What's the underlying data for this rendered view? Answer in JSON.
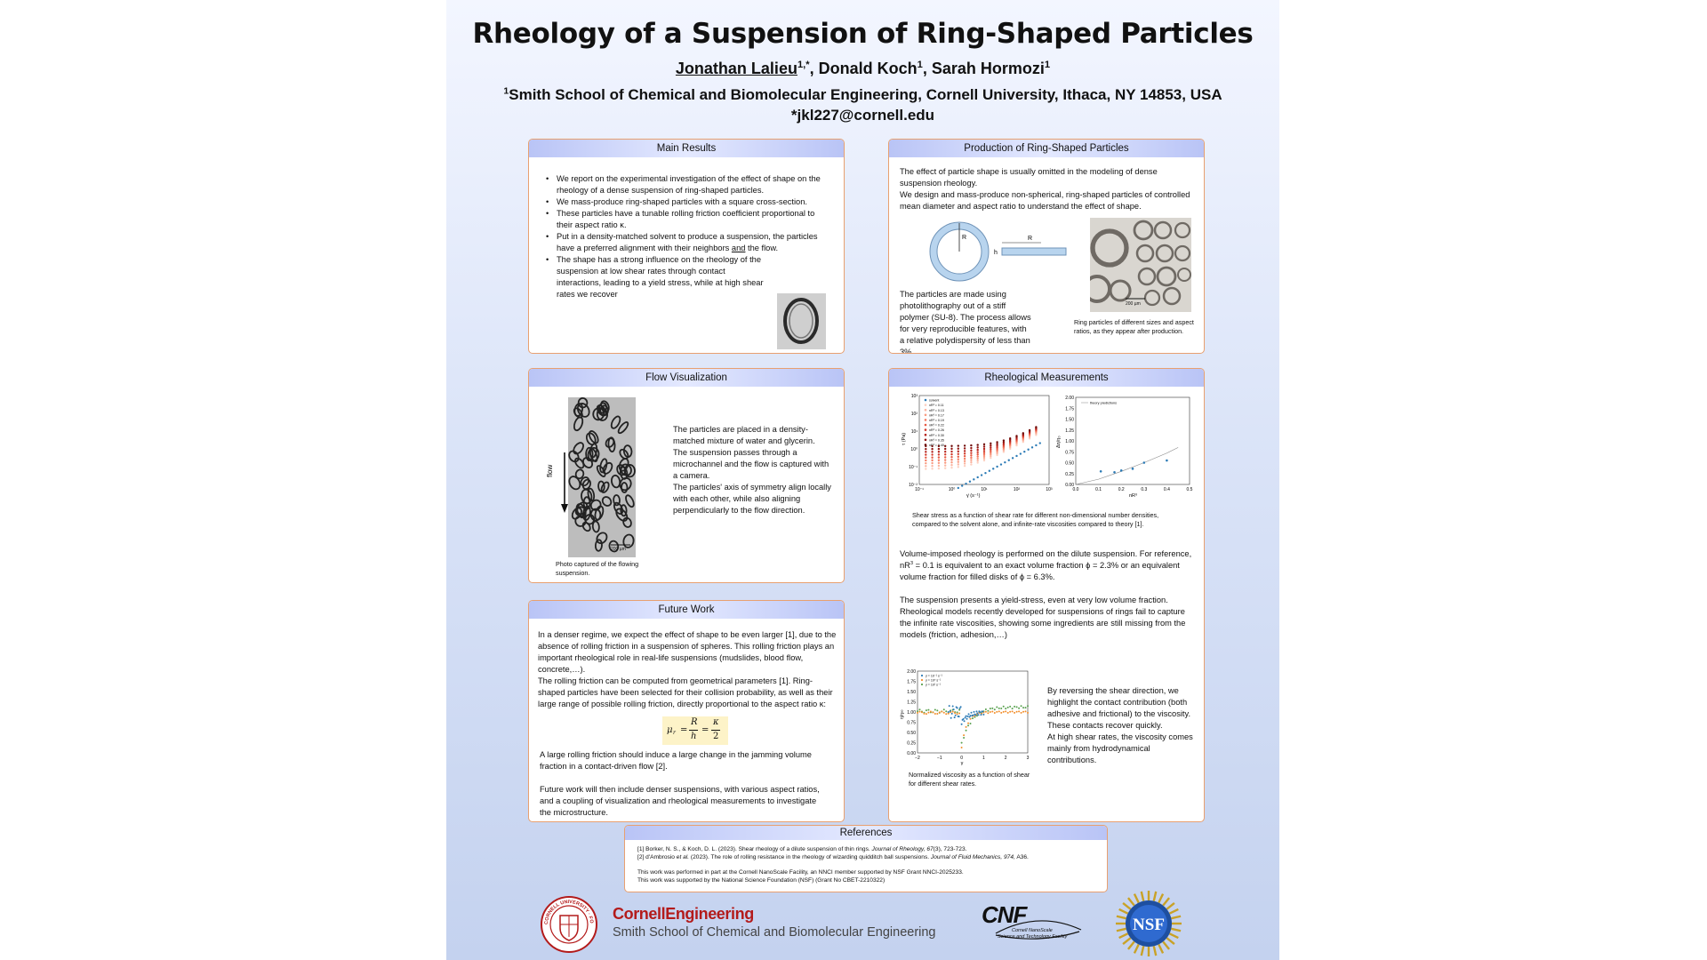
{
  "header": {
    "title": "Rheology of a Suspension of Ring-Shaped Particles",
    "author1": "Jonathan Lalieu",
    "author1_sup": "1,*",
    "author2": ", Donald Koch",
    "author2_sup": "1",
    "author3": ", Sarah Hormozi",
    "author3_sup": "1",
    "affil_sup": "1",
    "affiliation": "Smith School of Chemical and Biomolecular Engineering, Cornell University, Ithaca, NY 14853, USA",
    "email": "*jkl227@cornell.edu"
  },
  "main_results": {
    "title": "Main Results",
    "bullets": [
      "We report on the experimental investigation of the effect of shape on the rheology of a dense suspension of ring-shaped particles.",
      "We mass-produce ring-shaped particles with a square cross-section.",
      "These particles have a tunable rolling friction coefficient proportional to their aspect ratio κ.",
      "Put in a density-matched solvent to produce a suspension, the particles have a preferred alignment with their neighbors and the flow.",
      "The shape has a strong influence on the rheology of the suspension at low shear rates through contact interactions, leading to a yield stress, while at high shear rates we recover"
    ],
    "bullet4_pre": "Put in a density-matched solvent to produce a suspension, the particles have a preferred alignment with their neighbors ",
    "bullet4_and": "and",
    "bullet4_post": " the flow."
  },
  "production": {
    "title": "Production of Ring-Shaped Particles",
    "intro1": "The effect of particle shape is usually omitted in the modeling of dense suspension rheology.",
    "intro2": "We design and mass-produce non-spherical, ring-shaped particles of controlled mean diameter and aspect ratio to understand the effect of shape.",
    "label_R": "R",
    "label_h": "h",
    "body": "The particles are made using photolithography out of a stiff polymer (SU-8). The process allows for very reproducible features, with a relative polydispersity of less than 3%.",
    "scale": "200 µm",
    "caption": "Ring particles of different sizes and aspect ratios, as they appear after production."
  },
  "flow": {
    "title": "Flow Visualization",
    "flow_label": "flow",
    "scale": "200 µm",
    "caption": "Photo captured of the flowing suspension.",
    "text1": "The particles are placed in a density-matched mixture of water and glycerin.",
    "text2": "The suspension passes through a microchannel and the flow is captured with a camera.",
    "text3": "The particles' axis of symmetry align locally with each other, while also aligning perpendicularly to the flow direction."
  },
  "rheo": {
    "title": "Rheological Measurements",
    "caption1": "Shear stress as a function of shear rate for different non-dimensional number densities, compared to the solvent alone, and infinite-rate viscosities compared to theory [1].",
    "p1a": "Volume-imposed rheology is performed on the dilute suspension. For reference, nR",
    "p1_sup": "3",
    "p1b": " = 0.1 is equivalent to an exact volume fraction ϕ = 2.3% or an equivalent volume fraction for filled disks of ϕ = 6.3%.",
    "p2": "The suspension presents a yield-stress, even at very low volume fraction. Rheological models recently developed for suspensions of rings fail to capture the infinite rate viscosities, showing some ingredients are still missing from the models (friction, adhesion,…)",
    "rev1": "By reversing the shear direction, we highlight the contact contribution (both adhesive and frictional) to the viscosity.",
    "rev2": "These contacts recover quickly.",
    "rev3": "At high shear rates, the viscosity comes mainly from hydrodynamical contributions.",
    "caption3": "Normalized viscosity as a function of shear for different shear rates."
  },
  "future": {
    "title": "Future Work",
    "p1": "In a denser regime, we expect the effect of shape to be even larger [1], due to the absence of rolling friction in a suspension of spheres. This rolling friction plays an important rheological role in real-life suspensions (mudslides, blood flow, concrete,…).",
    "p2": "The rolling friction can be computed from geometrical parameters [1]. Ring-shaped particles have been selected for their collision probability, as well as their large range of possible rolling friction, directly proportional to the aspect ratio κ:",
    "eq_mu": "μ",
    "eq_r": "r",
    "eq_eq1": "=",
    "eq_num1": "R",
    "eq_den1": "h",
    "eq_eq2": "=",
    "eq_num2": "κ",
    "eq_den2": "2",
    "p3": "A large rolling friction should induce a large change in the jamming volume fraction in a contact-driven flow [2].",
    "p4": "Future work will then include denser suspensions, with various aspect ratios, and a coupling of visualization and rheological measurements to investigate the microstructure."
  },
  "references": {
    "title": "References",
    "r1a": "[1] Borker, N. S., & Koch, D. L. (2023). Shear rheology of a dilute suspension of thin rings. ",
    "r1j": "Journal of Rheology, 67",
    "r1b": "(3), 723-723.",
    "r2a": "[2] d'Ambrosio ",
    "r2e": "et al.",
    "r2b": " (2023). The role of rolling resistance in the rheology of wizarding quidditch ball suspensions. ",
    "r2j": "Journal of Fluid Mechanics, 974,",
    "r2c": " A36.",
    "ack1": "This work was performed in part at the Cornell NanoScale Facility, an NNCI member supported by NSF Grant NNCI-2025233.",
    "ack2": "This work was supported by the National Science Foundation (NSF) (Grant No CBET-2210322)"
  },
  "logos": {
    "cornell_engineering": "CornellEngineering",
    "cornell_sub": "Smith School of Chemical and Biomolecular Engineering",
    "cnf": "CNF",
    "cnf_sub1": "Cornell NanoScale",
    "cnf_sub2": "Science and Technology Facility",
    "nsf": "NSF",
    "seal_text": "CORNELL UNIVERSITY · FOUNDED A.D. 1865"
  },
  "chart_data": [
    {
      "type": "scatter",
      "title": "",
      "xlabel": "γ̇ (s⁻¹)",
      "ylabel": "τ (Pa)",
      "xscale": "log",
      "yscale": "log",
      "xlim": [
        0.1,
        1000
      ],
      "ylim": [
        0.01,
        1000
      ],
      "xticks": [
        "10⁻¹",
        "10⁰",
        "10¹",
        "10²",
        "10³"
      ],
      "yticks": [
        "10⁻²",
        "10⁻¹",
        "10⁰",
        "10¹",
        "10²",
        "10³"
      ],
      "legend_position": "top-left",
      "legend": [
        "solvent",
        "nR³ = 0.11",
        "nR³ = 0.13",
        "nR³ = 0.17",
        "nR³ = 0.19",
        "nR³ = 0.22",
        "nR³ = 0.26",
        "nR³ = 0.30",
        "nR³ = 0.35",
        "nR³ = 0.40"
      ]
    },
    {
      "type": "scatter",
      "title": "",
      "xlabel": "nR³",
      "ylabel": "Δη/η₀",
      "xlim": [
        0.0,
        0.5
      ],
      "ylim": [
        0.0,
        2.0
      ],
      "xticks": [
        "0.0",
        "0.1",
        "0.2",
        "0.3",
        "0.4",
        "0.5"
      ],
      "yticks": [
        "0.00",
        "0.25",
        "0.50",
        "0.75",
        "1.00",
        "1.25",
        "1.50",
        "1.75",
        "2.00"
      ],
      "legend": [
        "theory predictions"
      ],
      "legend_position": "top",
      "series": [
        {
          "name": "measurements",
          "x": [
            0.11,
            0.17,
            0.2,
            0.25,
            0.3,
            0.4
          ],
          "y": [
            0.3,
            0.28,
            0.32,
            0.36,
            0.5,
            0.55
          ]
        }
      ],
      "theory_x": [
        0.0,
        0.1,
        0.2,
        0.3,
        0.4,
        0.45
      ],
      "theory_y": [
        0.0,
        0.12,
        0.3,
        0.5,
        0.72,
        0.85
      ]
    },
    {
      "type": "line",
      "title": "",
      "xlabel": "γ",
      "ylabel": "η/η∞",
      "xlim": [
        -2,
        3
      ],
      "ylim": [
        0.0,
        2.0
      ],
      "xticks": [
        "−2",
        "−1",
        "0",
        "1",
        "2",
        "3"
      ],
      "yticks": [
        "0.00",
        "0.25",
        "0.50",
        "0.75",
        "1.00",
        "1.25",
        "1.50",
        "1.75",
        "2.00"
      ],
      "legend_position": "top-left",
      "legend": [
        "γ̇ = 10⁻¹ s⁻¹",
        "γ̇ = 10⁰ s⁻¹",
        "γ̇ = 10¹ s⁻¹"
      ]
    }
  ]
}
